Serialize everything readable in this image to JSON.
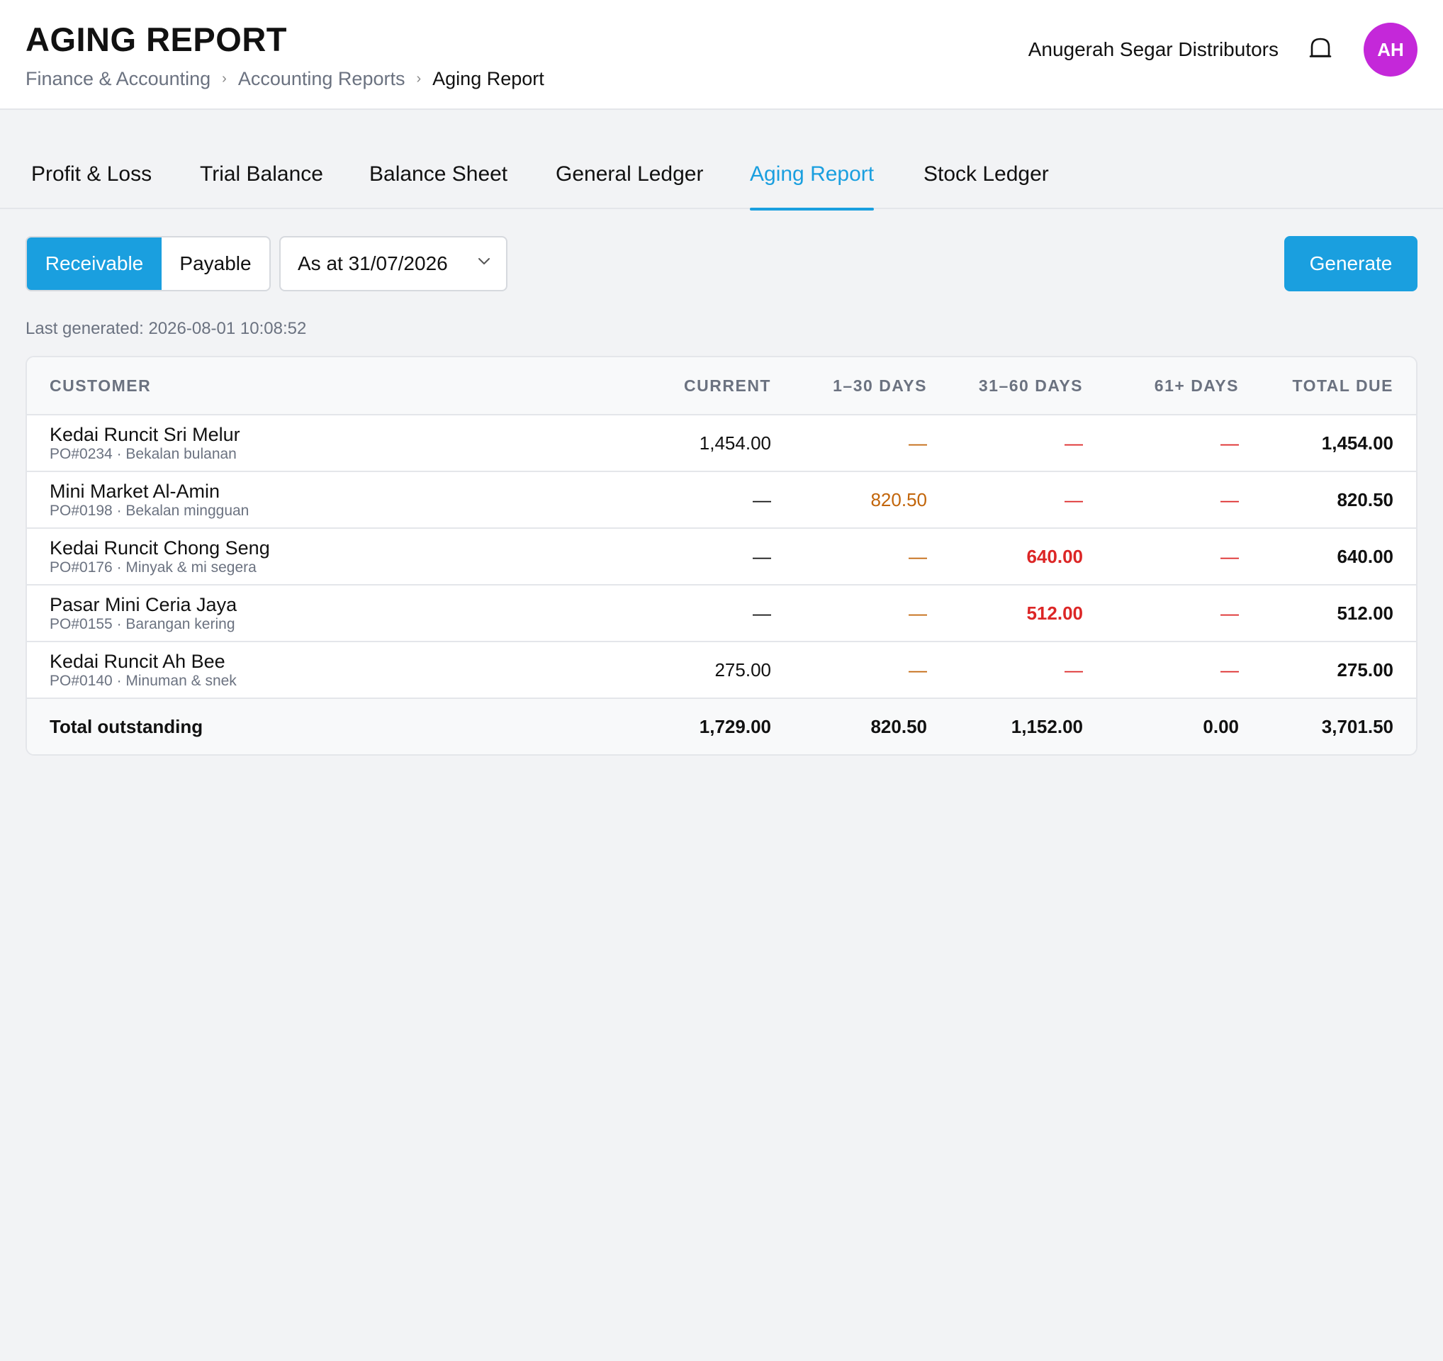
{
  "header": {
    "title": "AGING REPORT",
    "breadcrumb": [
      "Finance & Accounting",
      "Accounting Reports",
      "Aging Report"
    ],
    "company": "Anugerah Segar Distributors",
    "avatar_initials": "AH",
    "avatar_color": "#c428d9",
    "bell_icon": "bell-icon"
  },
  "tabs": [
    "Profit & Loss",
    "Trial Balance",
    "Balance Sheet",
    "General Ledger",
    "Aging Report",
    "Stock Ledger"
  ],
  "active_tab": "Aging Report",
  "toolbar": {
    "receivable_label": "Receivable",
    "payable_label": "Payable",
    "selected_type": "Receivable",
    "date_label": "As at 31/07/2026",
    "generate_label": "Generate"
  },
  "last_generated": "Last generated: 2026-08-01 10:08:52",
  "table": {
    "headers": [
      "CUSTOMER",
      "CURRENT",
      "1–30 DAYS",
      "31–60 DAYS",
      "61+ DAYS",
      "TOTAL DUE"
    ],
    "rows": [
      {
        "name": "Kedai Runcit Sri Melur",
        "sub": "PO#0234 · Bekalan bulanan",
        "current": "1,454.00",
        "d1_30": "—",
        "d31_60": "—",
        "d61": "—",
        "total": "1,454.00"
      },
      {
        "name": "Mini Market Al-Amin",
        "sub": "PO#0198 · Bekalan mingguan",
        "current": "—",
        "d1_30": "820.50",
        "d31_60": "—",
        "d61": "—",
        "total": "820.50"
      },
      {
        "name": "Kedai Runcit Chong Seng",
        "sub": "PO#0176 · Minyak & mi segera",
        "current": "—",
        "d1_30": "—",
        "d31_60": "640.00",
        "d61": "—",
        "total": "640.00"
      },
      {
        "name": "Pasar Mini Ceria Jaya",
        "sub": "PO#0155 · Barangan kering",
        "current": "—",
        "d1_30": "—",
        "d31_60": "512.00",
        "d61": "—",
        "total": "512.00"
      },
      {
        "name": "Kedai Runcit Ah Bee",
        "sub": "PO#0140 · Minuman & snek",
        "current": "275.00",
        "d1_30": "—",
        "d31_60": "—",
        "d61": "—",
        "total": "275.00"
      }
    ],
    "total_row": {
      "label": "Total outstanding",
      "current": "1,729.00",
      "d1_30": "820.50",
      "d31_60": "1,152.00",
      "d61": "0.00",
      "total": "3,701.50"
    }
  },
  "colors": {
    "accent": "#1a9fdf",
    "bucket_1_30": "#c2650a",
    "bucket_31_plus": "#dc2626"
  }
}
